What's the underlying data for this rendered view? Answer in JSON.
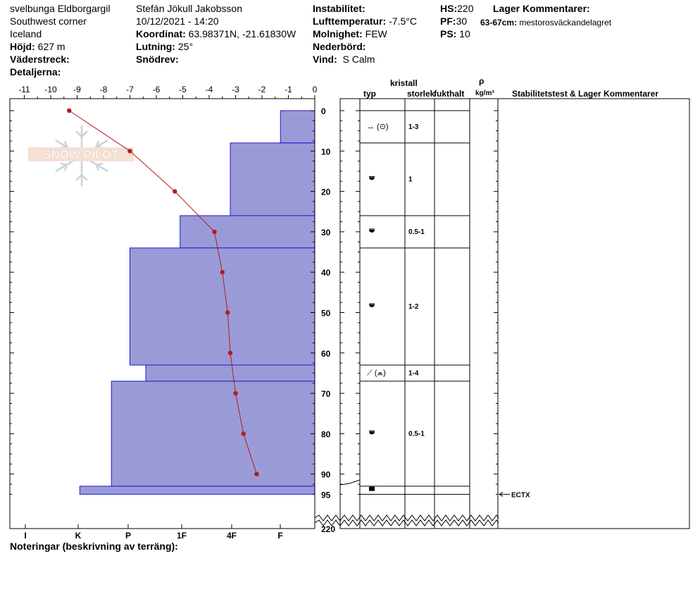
{
  "header": {
    "location": "svelbunga Eldborgargil",
    "area": "Southwest corner",
    "country": "Iceland",
    "elevation_label": "Höjd:",
    "elevation_value": "627 m",
    "aspect_label": "Väderstreck:",
    "details_label": "Detaljerna:",
    "observer": "Stefán Jökull Jakobsson",
    "datetime": "10/12/2021 - 14:20",
    "coord_label": "Koordinat:",
    "coord_value": "63.98371N, -21.61830W",
    "slope_label": "Lutning:",
    "slope_value": "25°",
    "drift_label": "Snödrev:",
    "instability_label": "Instabilitet:",
    "airtemp_label": "Lufttemperatur:",
    "airtemp_value": "-7.5°C",
    "sky_label": "Molnighet:",
    "sky_value": "FEW",
    "precip_label": "Nederbörd:",
    "wind_label": "Vind:",
    "wind_value": "S Calm",
    "hs_label": "HS:",
    "hs_value": "220",
    "pf_label": "PF:",
    "pf_value": "30",
    "ps_label": "PS:",
    "ps_value": "10",
    "layer_comments_title": "Lager Kommentarer:",
    "layer_comment_depth": "63-67cm:",
    "layer_comment_text": "mestorosväckandelagret"
  },
  "columns": {
    "crystal": "kristall",
    "type": "typ",
    "size": "storlek",
    "moisture": "fukthalt",
    "rho": "ρ",
    "density_unit": "kg/m³",
    "stability": "Stabilitetstest & Lager Kommentarer"
  },
  "notes_label": "Noteringar (beskrivning av terräng):",
  "watermark": "SNOW PILOT",
  "stability_test": "ECTX",
  "colors": {
    "hardness_fill": "#9b9ad8",
    "hardness_stroke": "#1a1acc",
    "temp": "#b01c1c",
    "grid": "#000000"
  },
  "chart_data": {
    "type": "snow-profile",
    "temperature_axis": {
      "ticks": [
        -11,
        -10,
        -9,
        -8,
        -7,
        -6,
        -5,
        -4,
        -3,
        -2,
        -1,
        0
      ],
      "range": [
        -11,
        0
      ],
      "unit": "°C"
    },
    "depth_axis": {
      "ticks": [
        0,
        10,
        20,
        30,
        40,
        50,
        60,
        70,
        80,
        90,
        95
      ],
      "bottom_label": "220",
      "range": [
        0,
        95
      ],
      "unit": "cm"
    },
    "hardness_ticks": [
      "I",
      "K",
      "P",
      "1F",
      "4F",
      "F"
    ],
    "temperature_profile": [
      {
        "depth": 0,
        "temp": -9.3
      },
      {
        "depth": 10,
        "temp": -7.0
      },
      {
        "depth": 20,
        "temp": -5.3
      },
      {
        "depth": 30,
        "temp": -3.8
      },
      {
        "depth": 40,
        "temp": -3.5
      },
      {
        "depth": 50,
        "temp": -3.3
      },
      {
        "depth": 60,
        "temp": -3.2
      },
      {
        "depth": 70,
        "temp": -3.0
      },
      {
        "depth": 80,
        "temp": -2.7
      },
      {
        "depth": 90,
        "temp": -2.2
      }
    ],
    "layers": [
      {
        "top": 0,
        "bottom": 8,
        "hardness": 1.3,
        "grain": "↔ (⊙)",
        "size": "1-3"
      },
      {
        "top": 8,
        "bottom": 26,
        "hardness": 3.2,
        "grain": "rounded",
        "size": "1"
      },
      {
        "top": 26,
        "bottom": 34,
        "hardness": 5.1,
        "grain": "rounded",
        "size": "0.5-1"
      },
      {
        "top": 34,
        "bottom": 63,
        "hardness": 7.0,
        "grain": "rounded",
        "size": "1-2"
      },
      {
        "top": 63,
        "bottom": 67,
        "hardness": 6.4,
        "grain": "⟋ (⩕)",
        "size": "1-4"
      },
      {
        "top": 67,
        "bottom": 93,
        "hardness": 7.7,
        "grain": "rounded",
        "size": "0.5-1"
      },
      {
        "top": 93,
        "bottom": 95,
        "hardness": 8.9,
        "grain": "ice",
        "size": ""
      }
    ],
    "stability_tests": [
      {
        "depth": 95,
        "label": "ECTX"
      }
    ]
  }
}
